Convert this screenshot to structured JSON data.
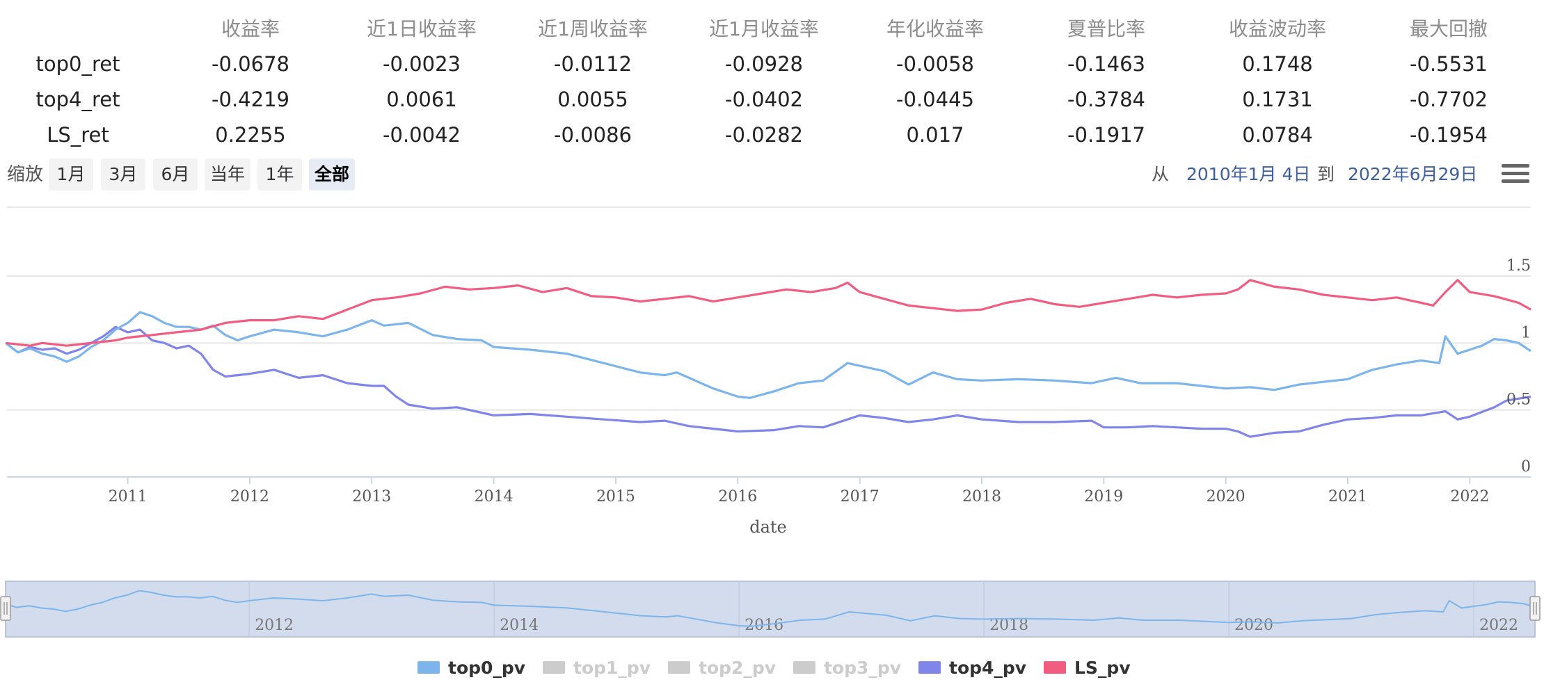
{
  "stats_table": {
    "headers": [
      "收益率",
      "近1日收益率",
      "近1周收益率",
      "近1月收益率",
      "年化收益率",
      "夏普比率",
      "收益波动率",
      "最大回撤"
    ],
    "rows": [
      {
        "name": "top0_ret",
        "values": [
          "-0.0678",
          "-0.0023",
          "-0.0112",
          "-0.0928",
          "-0.0058",
          "-0.1463",
          "0.1748",
          "-0.5531"
        ]
      },
      {
        "name": "top4_ret",
        "values": [
          "-0.4219",
          "0.0061",
          "0.0055",
          "-0.0402",
          "-0.0445",
          "-0.3784",
          "0.1731",
          "-0.7702"
        ]
      },
      {
        "name": "LS_ret",
        "values": [
          "0.2255",
          "-0.0042",
          "-0.0086",
          "-0.0282",
          "0.017",
          "-0.1917",
          "0.0784",
          "-0.1954"
        ]
      }
    ]
  },
  "range_selector": {
    "zoom_label": "缩放",
    "buttons": [
      "1月",
      "3月",
      "6月",
      "当年",
      "1年",
      "全部"
    ],
    "active_button": "全部",
    "from_label": "从",
    "from_date": "2010年1月 4日",
    "to_label": "到",
    "to_date": "2022年6月29日",
    "menu_icon": "hamburger-menu-icon"
  },
  "chart_data": {
    "type": "line",
    "xlabel": "date",
    "x_range": [
      2010.01,
      2022.5
    ],
    "x_ticks": [
      "2011",
      "2012",
      "2013",
      "2014",
      "2015",
      "2016",
      "2017",
      "2018",
      "2019",
      "2020",
      "2021",
      "2022"
    ],
    "ylim": [
      0,
      1.5
    ],
    "y_ticks": [
      "0",
      "0.5",
      "1",
      "1.5"
    ],
    "grid": true,
    "navigator_ticks": [
      "2012",
      "2014",
      "2016",
      "2018",
      "2020",
      "2022"
    ],
    "series": [
      {
        "name": "top0_pv",
        "color": "#7cb5ec",
        "visible": true,
        "points": [
          [
            2010.0,
            1.0
          ],
          [
            2010.1,
            0.93
          ],
          [
            2010.2,
            0.96
          ],
          [
            2010.3,
            0.92
          ],
          [
            2010.4,
            0.9
          ],
          [
            2010.5,
            0.86
          ],
          [
            2010.6,
            0.9
          ],
          [
            2010.7,
            0.97
          ],
          [
            2010.8,
            1.02
          ],
          [
            2010.9,
            1.1
          ],
          [
            2011.0,
            1.15
          ],
          [
            2011.1,
            1.23
          ],
          [
            2011.2,
            1.2
          ],
          [
            2011.3,
            1.15
          ],
          [
            2011.4,
            1.12
          ],
          [
            2011.5,
            1.12
          ],
          [
            2011.6,
            1.1
          ],
          [
            2011.7,
            1.13
          ],
          [
            2011.8,
            1.06
          ],
          [
            2011.9,
            1.02
          ],
          [
            2012.0,
            1.05
          ],
          [
            2012.2,
            1.1
          ],
          [
            2012.4,
            1.08
          ],
          [
            2012.6,
            1.05
          ],
          [
            2012.8,
            1.1
          ],
          [
            2013.0,
            1.17
          ],
          [
            2013.1,
            1.13
          ],
          [
            2013.3,
            1.15
          ],
          [
            2013.5,
            1.06
          ],
          [
            2013.7,
            1.03
          ],
          [
            2013.9,
            1.02
          ],
          [
            2014.0,
            0.97
          ],
          [
            2014.3,
            0.95
          ],
          [
            2014.6,
            0.92
          ],
          [
            2014.9,
            0.85
          ],
          [
            2015.2,
            0.78
          ],
          [
            2015.4,
            0.76
          ],
          [
            2015.5,
            0.78
          ],
          [
            2015.6,
            0.74
          ],
          [
            2015.8,
            0.66
          ],
          [
            2016.0,
            0.6
          ],
          [
            2016.1,
            0.59
          ],
          [
            2016.3,
            0.64
          ],
          [
            2016.5,
            0.7
          ],
          [
            2016.7,
            0.72
          ],
          [
            2016.9,
            0.85
          ],
          [
            2017.0,
            0.83
          ],
          [
            2017.2,
            0.79
          ],
          [
            2017.4,
            0.69
          ],
          [
            2017.6,
            0.78
          ],
          [
            2017.8,
            0.73
          ],
          [
            2018.0,
            0.72
          ],
          [
            2018.3,
            0.73
          ],
          [
            2018.6,
            0.72
          ],
          [
            2018.9,
            0.7
          ],
          [
            2019.1,
            0.74
          ],
          [
            2019.3,
            0.7
          ],
          [
            2019.6,
            0.7
          ],
          [
            2019.8,
            0.68
          ],
          [
            2020.0,
            0.66
          ],
          [
            2020.2,
            0.67
          ],
          [
            2020.4,
            0.65
          ],
          [
            2020.6,
            0.69
          ],
          [
            2020.8,
            0.71
          ],
          [
            2021.0,
            0.73
          ],
          [
            2021.2,
            0.8
          ],
          [
            2021.4,
            0.84
          ],
          [
            2021.6,
            0.87
          ],
          [
            2021.75,
            0.85
          ],
          [
            2021.8,
            1.05
          ],
          [
            2021.9,
            0.92
          ],
          [
            2022.0,
            0.95
          ],
          [
            2022.1,
            0.98
          ],
          [
            2022.2,
            1.03
          ],
          [
            2022.3,
            1.02
          ],
          [
            2022.4,
            1.0
          ],
          [
            2022.5,
            0.94
          ]
        ]
      },
      {
        "name": "top1_pv",
        "color": "#cccccc",
        "visible": false,
        "points": []
      },
      {
        "name": "top2_pv",
        "color": "#cccccc",
        "visible": false,
        "points": []
      },
      {
        "name": "top3_pv",
        "color": "#cccccc",
        "visible": false,
        "points": []
      },
      {
        "name": "top4_pv",
        "color": "#8085e9",
        "visible": true,
        "points": [
          [
            2010.0,
            1.0
          ],
          [
            2010.1,
            0.93
          ],
          [
            2010.2,
            0.97
          ],
          [
            2010.3,
            0.95
          ],
          [
            2010.4,
            0.96
          ],
          [
            2010.5,
            0.92
          ],
          [
            2010.6,
            0.95
          ],
          [
            2010.7,
            1.0
          ],
          [
            2010.8,
            1.05
          ],
          [
            2010.9,
            1.12
          ],
          [
            2011.0,
            1.08
          ],
          [
            2011.1,
            1.1
          ],
          [
            2011.2,
            1.02
          ],
          [
            2011.3,
            1.0
          ],
          [
            2011.4,
            0.96
          ],
          [
            2011.5,
            0.98
          ],
          [
            2011.6,
            0.92
          ],
          [
            2011.7,
            0.8
          ],
          [
            2011.8,
            0.75
          ],
          [
            2011.9,
            0.76
          ],
          [
            2012.0,
            0.77
          ],
          [
            2012.2,
            0.8
          ],
          [
            2012.4,
            0.74
          ],
          [
            2012.6,
            0.76
          ],
          [
            2012.8,
            0.7
          ],
          [
            2013.0,
            0.68
          ],
          [
            2013.1,
            0.68
          ],
          [
            2013.2,
            0.6
          ],
          [
            2013.3,
            0.54
          ],
          [
            2013.5,
            0.51
          ],
          [
            2013.7,
            0.52
          ],
          [
            2013.9,
            0.48
          ],
          [
            2014.0,
            0.46
          ],
          [
            2014.3,
            0.47
          ],
          [
            2014.6,
            0.45
          ],
          [
            2014.9,
            0.43
          ],
          [
            2015.2,
            0.41
          ],
          [
            2015.4,
            0.42
          ],
          [
            2015.6,
            0.38
          ],
          [
            2015.8,
            0.36
          ],
          [
            2016.0,
            0.34
          ],
          [
            2016.3,
            0.35
          ],
          [
            2016.5,
            0.38
          ],
          [
            2016.7,
            0.37
          ],
          [
            2016.9,
            0.43
          ],
          [
            2017.0,
            0.46
          ],
          [
            2017.2,
            0.44
          ],
          [
            2017.4,
            0.41
          ],
          [
            2017.6,
            0.43
          ],
          [
            2017.8,
            0.46
          ],
          [
            2018.0,
            0.43
          ],
          [
            2018.3,
            0.41
          ],
          [
            2018.6,
            0.41
          ],
          [
            2018.9,
            0.42
          ],
          [
            2019.0,
            0.37
          ],
          [
            2019.2,
            0.37
          ],
          [
            2019.4,
            0.38
          ],
          [
            2019.6,
            0.37
          ],
          [
            2019.8,
            0.36
          ],
          [
            2020.0,
            0.36
          ],
          [
            2020.1,
            0.34
          ],
          [
            2020.2,
            0.3
          ],
          [
            2020.4,
            0.33
          ],
          [
            2020.6,
            0.34
          ],
          [
            2020.8,
            0.39
          ],
          [
            2021.0,
            0.43
          ],
          [
            2021.2,
            0.44
          ],
          [
            2021.4,
            0.46
          ],
          [
            2021.6,
            0.46
          ],
          [
            2021.8,
            0.49
          ],
          [
            2021.9,
            0.43
          ],
          [
            2022.0,
            0.45
          ],
          [
            2022.2,
            0.52
          ],
          [
            2022.3,
            0.57
          ],
          [
            2022.5,
            0.6
          ]
        ]
      },
      {
        "name": "LS_pv",
        "color": "#f15c80",
        "visible": true,
        "points": [
          [
            2010.0,
            1.0
          ],
          [
            2010.1,
            0.99
          ],
          [
            2010.2,
            0.98
          ],
          [
            2010.3,
            1.0
          ],
          [
            2010.5,
            0.98
          ],
          [
            2010.7,
            1.0
          ],
          [
            2010.9,
            1.02
          ],
          [
            2011.0,
            1.04
          ],
          [
            2011.2,
            1.06
          ],
          [
            2011.4,
            1.08
          ],
          [
            2011.6,
            1.1
          ],
          [
            2011.8,
            1.15
          ],
          [
            2012.0,
            1.17
          ],
          [
            2012.2,
            1.17
          ],
          [
            2012.4,
            1.2
          ],
          [
            2012.6,
            1.18
          ],
          [
            2012.8,
            1.25
          ],
          [
            2013.0,
            1.32
          ],
          [
            2013.2,
            1.34
          ],
          [
            2013.4,
            1.37
          ],
          [
            2013.6,
            1.42
          ],
          [
            2013.8,
            1.4
          ],
          [
            2014.0,
            1.41
          ],
          [
            2014.2,
            1.43
          ],
          [
            2014.4,
            1.38
          ],
          [
            2014.6,
            1.41
          ],
          [
            2014.8,
            1.35
          ],
          [
            2015.0,
            1.34
          ],
          [
            2015.2,
            1.31
          ],
          [
            2015.4,
            1.33
          ],
          [
            2015.6,
            1.35
          ],
          [
            2015.8,
            1.31
          ],
          [
            2016.0,
            1.34
          ],
          [
            2016.2,
            1.37
          ],
          [
            2016.4,
            1.4
          ],
          [
            2016.6,
            1.38
          ],
          [
            2016.8,
            1.41
          ],
          [
            2016.9,
            1.45
          ],
          [
            2017.0,
            1.38
          ],
          [
            2017.2,
            1.33
          ],
          [
            2017.4,
            1.28
          ],
          [
            2017.6,
            1.26
          ],
          [
            2017.8,
            1.24
          ],
          [
            2018.0,
            1.25
          ],
          [
            2018.2,
            1.3
          ],
          [
            2018.4,
            1.33
          ],
          [
            2018.6,
            1.29
          ],
          [
            2018.8,
            1.27
          ],
          [
            2019.0,
            1.3
          ],
          [
            2019.2,
            1.33
          ],
          [
            2019.4,
            1.36
          ],
          [
            2019.6,
            1.34
          ],
          [
            2019.8,
            1.36
          ],
          [
            2020.0,
            1.37
          ],
          [
            2020.1,
            1.4
          ],
          [
            2020.2,
            1.47
          ],
          [
            2020.4,
            1.42
          ],
          [
            2020.6,
            1.4
          ],
          [
            2020.8,
            1.36
          ],
          [
            2021.0,
            1.34
          ],
          [
            2021.2,
            1.32
          ],
          [
            2021.4,
            1.34
          ],
          [
            2021.6,
            1.3
          ],
          [
            2021.7,
            1.28
          ],
          [
            2021.8,
            1.38
          ],
          [
            2021.9,
            1.47
          ],
          [
            2022.0,
            1.38
          ],
          [
            2022.2,
            1.35
          ],
          [
            2022.4,
            1.3
          ],
          [
            2022.5,
            1.25
          ]
        ]
      }
    ]
  },
  "legend": [
    {
      "name": "top0_pv",
      "color": "#7cb5ec",
      "visible": true
    },
    {
      "name": "top1_pv",
      "color": "#cccccc",
      "visible": false
    },
    {
      "name": "top2_pv",
      "color": "#cccccc",
      "visible": false
    },
    {
      "name": "top3_pv",
      "color": "#cccccc",
      "visible": false
    },
    {
      "name": "top4_pv",
      "color": "#8085e9",
      "visible": true
    },
    {
      "name": "LS_pv",
      "color": "#f15c80",
      "visible": true
    }
  ]
}
